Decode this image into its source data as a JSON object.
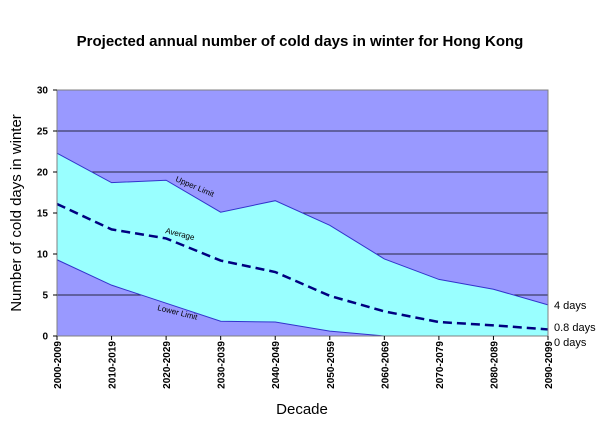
{
  "chart_data": {
    "type": "area",
    "title": "Projected annual number of cold days in winter for Hong Kong",
    "xlabel": "Decade",
    "ylabel": "Number of cold days in winter",
    "categories": [
      "2000-2009",
      "2010-2019",
      "2020-2029",
      "2030-2039",
      "2040-2049",
      "2050-2059",
      "2060-2069",
      "2070-2079",
      "2080-2089",
      "2090-2099"
    ],
    "ylim": [
      0,
      30
    ],
    "yticks": [
      "0",
      "5",
      "10",
      "15",
      "20",
      "25",
      "30"
    ],
    "grid": true,
    "series": [
      {
        "name": "Upper Limit",
        "values": [
          22.3,
          18.7,
          19.0,
          15.1,
          16.5,
          13.5,
          9.4,
          6.9,
          5.7,
          3.8
        ]
      },
      {
        "name": "Average",
        "values": [
          16.1,
          13.0,
          11.9,
          9.2,
          7.8,
          4.9,
          3.0,
          1.7,
          1.3,
          0.8
        ]
      },
      {
        "name": "Lower Limit",
        "values": [
          9.3,
          6.2,
          4.0,
          1.8,
          1.7,
          0.6,
          0.0,
          0.0,
          0.0,
          0.0
        ]
      }
    ],
    "end_labels": [
      "4 days",
      "0.8 days",
      "0 days"
    ],
    "colors": {
      "plot_background": "#9999ff",
      "band_fill": "#99ffff",
      "upper_line": "#3333cc",
      "average_line": "#000080",
      "lower_line": "#3333cc",
      "gridline": "#000000"
    }
  }
}
